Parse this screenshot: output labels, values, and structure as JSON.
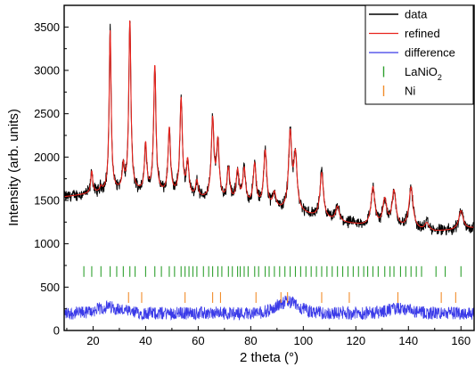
{
  "chart_data": {
    "type": "line",
    "xlabel": "2 theta (°)",
    "ylabel": "Intensity (arb. units)",
    "xlim": [
      9,
      165
    ],
    "ylim": [
      0,
      3750
    ],
    "xticks": [
      20,
      40,
      60,
      80,
      100,
      120,
      140,
      160
    ],
    "yticks": [
      0,
      500,
      1000,
      1500,
      2000,
      2500,
      3000,
      3500
    ],
    "grid": false,
    "legend_position": "top-right",
    "legend": [
      {
        "label": "data",
        "color": "#000000",
        "marker": "line"
      },
      {
        "label": "refined",
        "color": "#e8231d",
        "marker": "line"
      },
      {
        "label": "difference",
        "color": "#3a3ae8",
        "marker": "line"
      },
      {
        "label": "LaNiO",
        "sub": "2",
        "color": "#2fa02f",
        "marker": "tick"
      },
      {
        "label": "Ni",
        "color": "#f28d2c",
        "marker": "tick"
      }
    ],
    "background": {
      "x": [
        9,
        15,
        20,
        25,
        30,
        35,
        40,
        45,
        50,
        55,
        60,
        65,
        70,
        75,
        80,
        85,
        90,
        95,
        100,
        105,
        110,
        115,
        120,
        125,
        130,
        135,
        140,
        145,
        150,
        155,
        160,
        165
      ],
      "y": [
        1540,
        1560,
        1580,
        1590,
        1600,
        1600,
        1580,
        1570,
        1550,
        1530,
        1510,
        1500,
        1470,
        1450,
        1420,
        1400,
        1380,
        1360,
        1340,
        1300,
        1270,
        1240,
        1220,
        1200,
        1190,
        1180,
        1170,
        1150,
        1140,
        1150,
        1160,
        1180
      ]
    },
    "peaks": [
      {
        "x": 19.5,
        "y": 1830
      },
      {
        "x": 23.0,
        "y": 1640
      },
      {
        "x": 26.5,
        "y": 3450
      },
      {
        "x": 31.5,
        "y": 1870
      },
      {
        "x": 34.0,
        "y": 3560
      },
      {
        "x": 40.0,
        "y": 2130
      },
      {
        "x": 43.5,
        "y": 3040
      },
      {
        "x": 49.0,
        "y": 2310
      },
      {
        "x": 53.5,
        "y": 2650
      },
      {
        "x": 56.0,
        "y": 1920
      },
      {
        "x": 59.5,
        "y": 1700
      },
      {
        "x": 65.5,
        "y": 2400
      },
      {
        "x": 67.5,
        "y": 2130
      },
      {
        "x": 71.5,
        "y": 1840
      },
      {
        "x": 75.0,
        "y": 1810
      },
      {
        "x": 77.5,
        "y": 1830
      },
      {
        "x": 81.5,
        "y": 1890
      },
      {
        "x": 85.5,
        "y": 2050
      },
      {
        "x": 89.0,
        "y": 1560
      },
      {
        "x": 95.0,
        "y": 2240
      },
      {
        "x": 97.0,
        "y": 1980
      },
      {
        "x": 107.0,
        "y": 1810
      },
      {
        "x": 113.0,
        "y": 1420
      },
      {
        "x": 126.5,
        "y": 1640
      },
      {
        "x": 131.0,
        "y": 1490
      },
      {
        "x": 134.5,
        "y": 1590
      },
      {
        "x": 141.0,
        "y": 1640
      },
      {
        "x": 147.0,
        "y": 1230
      },
      {
        "x": 160.0,
        "y": 1380
      }
    ],
    "reflections": {
      "LaNiO2": {
        "y": 680,
        "x": [
          16.5,
          19.5,
          23.0,
          26.5,
          29.0,
          31.5,
          34.0,
          36.0,
          40.0,
          43.5,
          46.0,
          49.0,
          51.0,
          53.5,
          55.0,
          56.5,
          58.0,
          59.5,
          62.0,
          64.0,
          65.5,
          67.5,
          69.0,
          71.5,
          73.0,
          75.0,
          76.0,
          77.5,
          79.0,
          81.5,
          83.0,
          85.5,
          87.0,
          89.0,
          91.0,
          93.0,
          95.0,
          97.0,
          99.0,
          101.0,
          103.0,
          105.0,
          107.0,
          109.0,
          111.0,
          113.0,
          115.0,
          117.0,
          119.0,
          121.0,
          123.0,
          124.5,
          126.5,
          128.5,
          131.0,
          133.0,
          134.5,
          137.0,
          139.0,
          141.0,
          143.0,
          145.0,
          150.5,
          154.0,
          160.0
        ]
      },
      "Ni": {
        "y": 380,
        "x": [
          33.5,
          38.5,
          55.0,
          65.5,
          68.5,
          82.0,
          91.5,
          94.0,
          107.0,
          117.5,
          136.0,
          152.5,
          158.0
        ]
      }
    },
    "difference": {
      "baseline": 200,
      "noise_amplitude": 75,
      "bumps": [
        {
          "x": 26,
          "y": 270
        },
        {
          "x": 94,
          "y": 330
        },
        {
          "x": 136,
          "y": 250
        }
      ]
    },
    "colors": {
      "data": "#000000",
      "refined": "#e8231d",
      "difference": "#3a3ae8",
      "LaNiO2": "#2fa02f",
      "Ni": "#f28d2c"
    }
  }
}
